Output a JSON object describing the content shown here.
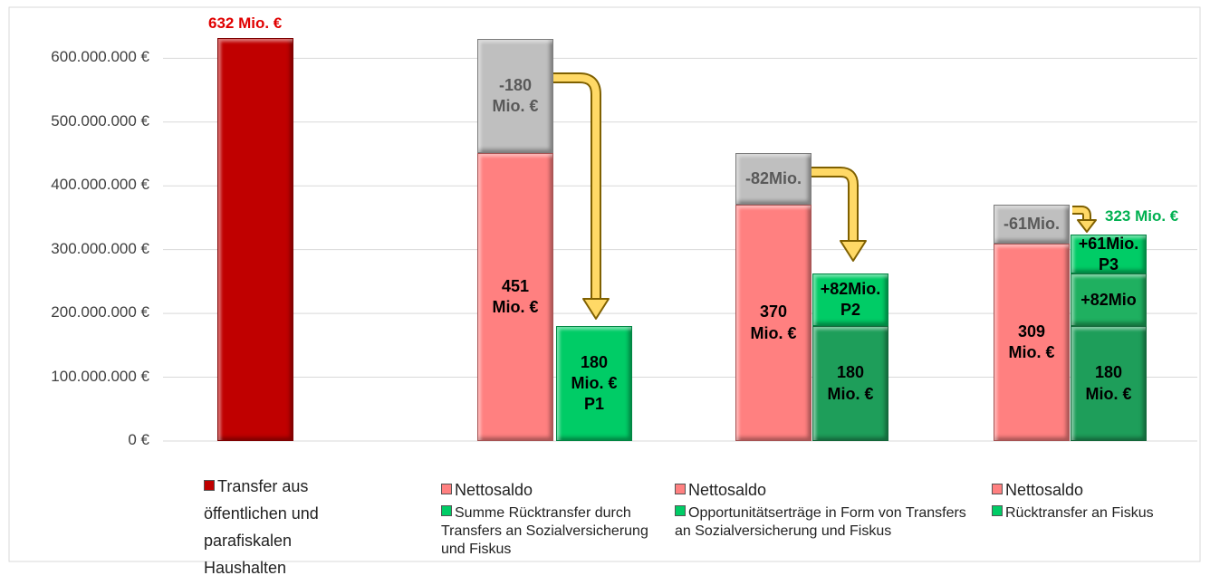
{
  "chart_data": {
    "type": "stacked-bar",
    "ylim": [
      0,
      680000000
    ],
    "yticks": [
      {
        "value": 0,
        "label": "0 €"
      },
      {
        "value": 100000000,
        "label": "100.000.000 €"
      },
      {
        "value": 200000000,
        "label": "200.000.000 €"
      },
      {
        "value": 300000000,
        "label": "300.000.000 €"
      },
      {
        "value": 400000000,
        "label": "400.000.000 €"
      },
      {
        "value": 500000000,
        "label": "500.000.000 €"
      },
      {
        "value": 600000000,
        "label": "600.000.000 €"
      }
    ],
    "grid": true,
    "groups": [
      {
        "legend": [
          {
            "name": "Transfer aus öffentlichen und parafiskalen Haushalten",
            "color": "#c00000"
          }
        ],
        "columns": [
          {
            "total_label": "632 Mio. €",
            "total_color": "#e00000",
            "segments": [
              {
                "value": 632000000,
                "color": "#c00000"
              }
            ]
          }
        ]
      },
      {
        "legend": [
          {
            "name": "Nettosaldo",
            "color": "#ff8080"
          },
          {
            "name": "Summe Rücktransfer durch Transfers an Sozialversicherung und Fiskus",
            "color": "#00cc66"
          }
        ],
        "columns": [
          {
            "segments": [
              {
                "value": 451000000,
                "value_label": "451 Mio. €",
                "color": "#ff8080",
                "label_color": "#000000"
              },
              {
                "value": 180000000,
                "value_label": "-180 Mio. €",
                "color": "#bfbfbf",
                "label_color": "#595959"
              }
            ]
          },
          {
            "segments": [
              {
                "value": 180000000,
                "value_label": "180 Mio. € P1",
                "color": "#00cc66",
                "label_color": "#000000"
              }
            ]
          }
        ]
      },
      {
        "legend": [
          {
            "name": "Nettosaldo",
            "color": "#ff8080"
          },
          {
            "name": "Opportunitätserträge in Form von Transfers an Sozialversicherung und Fiskus",
            "color": "#00cc66"
          }
        ],
        "columns": [
          {
            "segments": [
              {
                "value": 370000000,
                "value_label": "370 Mio. €",
                "color": "#ff8080",
                "label_color": "#000000"
              },
              {
                "value": 82000000,
                "value_label": "-82Mio.",
                "color": "#bfbfbf",
                "label_color": "#595959"
              }
            ]
          },
          {
            "segments": [
              {
                "value": 180000000,
                "value_label": "180 Mio. €",
                "color": "#1e9e5a",
                "label_color": "#000000"
              },
              {
                "value": 82000000,
                "value_label": "+82Mio. P2",
                "color": "#00cc66",
                "label_color": "#000000"
              }
            ]
          }
        ]
      },
      {
        "legend": [
          {
            "name": "Nettosaldo",
            "color": "#ff8080"
          },
          {
            "name": "Rücktransfer an Fiskus",
            "color": "#00cc66"
          }
        ],
        "columns": [
          {
            "segments": [
              {
                "value": 309000000,
                "value_label": "309 Mio. €",
                "color": "#ff8080",
                "label_color": "#000000"
              },
              {
                "value": 61000000,
                "value_label": "-61Mio.",
                "color": "#bfbfbf",
                "label_color": "#595959"
              }
            ]
          },
          {
            "total_label": "323 Mio. €",
            "total_color": "#00b050",
            "segments": [
              {
                "value": 180000000,
                "value_label": "180 Mio. €",
                "color": "#1e9e5a",
                "label_color": "#000000"
              },
              {
                "value": 82000000,
                "value_label": "+82Mio",
                "color": "#1fb060",
                "label_color": "#000000"
              },
              {
                "value": 61000000,
                "value_label": "+61Mio. P3",
                "color": "#00cc66",
                "label_color": "#000000"
              }
            ]
          }
        ]
      }
    ]
  }
}
